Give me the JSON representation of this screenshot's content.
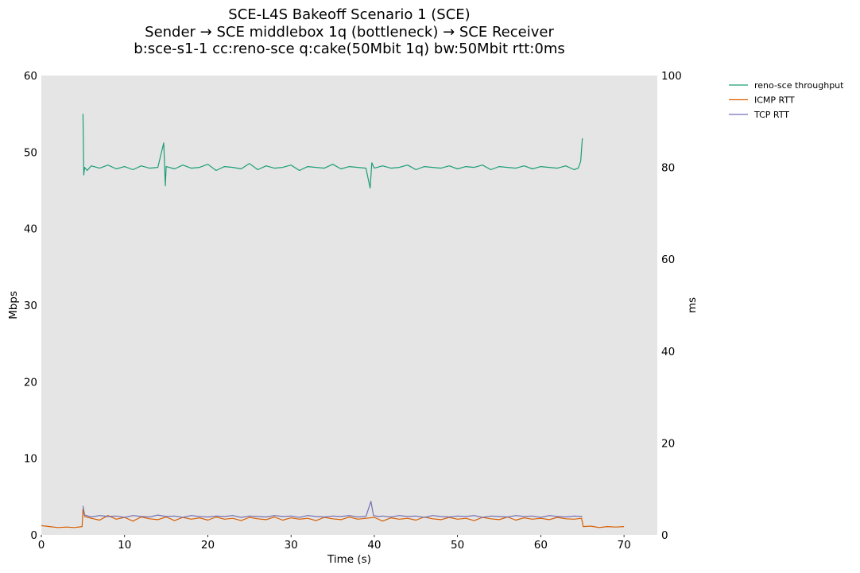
{
  "title": {
    "line1": "SCE-L4S Bakeoff Scenario 1 (SCE)",
    "line2": "Sender → SCE middlebox 1q (bottleneck) → SCE Receiver",
    "line3": "b:sce-s1-1 cc:reno-sce q:cake(50Mbit 1q) bw:50Mbit rtt:0ms"
  },
  "colors": {
    "plot_background": "#e5e5e5",
    "throughput": "#1b9e77",
    "icmp_rtt": "#d95f02",
    "tcp_rtt": "#7570b3"
  },
  "chart_data": {
    "type": "line",
    "title": "SCE-L4S Bakeoff Scenario 1 (SCE)",
    "xlabel": "Time (s)",
    "ylabel_left": "Mbps",
    "ylabel_right": "ms",
    "xlim": [
      0,
      74
    ],
    "ylim_left": [
      0,
      60
    ],
    "ylim_right": [
      0,
      100
    ],
    "xticks": [
      0,
      10,
      20,
      30,
      40,
      50,
      60,
      70
    ],
    "yticks_left": [
      0,
      10,
      20,
      30,
      40,
      50,
      60
    ],
    "yticks_right": [
      0,
      20,
      40,
      60,
      80,
      100
    ],
    "grid": false,
    "legend_position": "outside-top-right",
    "series": [
      {
        "name": "reno-sce throughput",
        "axis": "left",
        "x": [
          5.0,
          5.1,
          5.2,
          5.5,
          6.0,
          7.0,
          8.0,
          9.0,
          10.0,
          11.0,
          12.0,
          13.0,
          14.0,
          14.7,
          14.9,
          15.0,
          16.0,
          17.0,
          18.0,
          19.0,
          20.0,
          21.0,
          22.0,
          23.0,
          24.0,
          25.0,
          26.0,
          27.0,
          28.0,
          29.0,
          30.0,
          31.0,
          32.0,
          33.0,
          34.0,
          35.0,
          36.0,
          37.0,
          38.0,
          39.0,
          39.5,
          39.7,
          40.0,
          41.0,
          42.0,
          43.0,
          44.0,
          45.0,
          46.0,
          47.0,
          48.0,
          49.0,
          50.0,
          51.0,
          52.0,
          53.0,
          54.0,
          55.0,
          56.0,
          57.0,
          58.0,
          59.0,
          60.0,
          61.0,
          62.0,
          63.0,
          64.0,
          64.5,
          64.8,
          65.0
        ],
        "values": [
          55.0,
          47.0,
          48.0,
          47.6,
          48.2,
          47.9,
          48.3,
          47.8,
          48.1,
          47.7,
          48.2,
          47.9,
          48.0,
          51.2,
          45.6,
          48.1,
          47.8,
          48.3,
          47.9,
          48.0,
          48.4,
          47.6,
          48.1,
          48.0,
          47.8,
          48.5,
          47.7,
          48.2,
          47.9,
          48.0,
          48.3,
          47.6,
          48.1,
          48.0,
          47.9,
          48.4,
          47.8,
          48.1,
          48.0,
          47.9,
          45.3,
          48.6,
          47.9,
          48.2,
          47.9,
          48.0,
          48.3,
          47.7,
          48.1,
          48.0,
          47.9,
          48.2,
          47.8,
          48.1,
          48.0,
          48.3,
          47.7,
          48.1,
          48.0,
          47.9,
          48.2,
          47.8,
          48.1,
          48.0,
          47.9,
          48.2,
          47.7,
          47.9,
          48.8,
          51.8
        ]
      },
      {
        "name": "ICMP RTT",
        "axis": "right",
        "x": [
          0.0,
          1.0,
          2.0,
          3.0,
          4.0,
          4.9,
          5.0,
          5.2,
          6.0,
          7.0,
          8.0,
          9.0,
          10.0,
          11.0,
          12.0,
          13.0,
          14.0,
          15.0,
          16.0,
          17.0,
          18.0,
          19.0,
          20.0,
          21.0,
          22.0,
          23.0,
          24.0,
          25.0,
          26.0,
          27.0,
          28.0,
          29.0,
          30.0,
          31.0,
          32.0,
          33.0,
          34.0,
          35.0,
          36.0,
          37.0,
          38.0,
          39.0,
          40.0,
          41.0,
          42.0,
          43.0,
          44.0,
          45.0,
          46.0,
          47.0,
          48.0,
          49.0,
          50.0,
          51.0,
          52.0,
          53.0,
          54.0,
          55.0,
          56.0,
          57.0,
          58.0,
          59.0,
          60.0,
          61.0,
          62.0,
          63.0,
          64.0,
          64.9,
          65.1,
          66.0,
          67.0,
          68.0,
          69.0,
          70.0
        ],
        "values": [
          2.0,
          1.8,
          1.6,
          1.7,
          1.6,
          1.8,
          5.6,
          4.0,
          3.6,
          3.2,
          4.2,
          3.4,
          3.8,
          3.0,
          3.9,
          3.5,
          3.3,
          3.9,
          3.1,
          3.8,
          3.4,
          3.7,
          3.2,
          3.9,
          3.4,
          3.6,
          3.1,
          3.8,
          3.5,
          3.3,
          3.9,
          3.2,
          3.7,
          3.4,
          3.6,
          3.1,
          3.8,
          3.5,
          3.3,
          3.9,
          3.4,
          3.6,
          3.8,
          3.0,
          3.7,
          3.4,
          3.6,
          3.2,
          3.9,
          3.5,
          3.3,
          3.8,
          3.4,
          3.6,
          3.1,
          3.8,
          3.5,
          3.3,
          3.9,
          3.2,
          3.7,
          3.4,
          3.6,
          3.3,
          3.8,
          3.5,
          3.4,
          3.6,
          1.8,
          1.9,
          1.6,
          1.8,
          1.7,
          1.8
        ]
      },
      {
        "name": "TCP RTT",
        "axis": "right",
        "x": [
          5.0,
          5.2,
          6.0,
          7.0,
          8.0,
          9.0,
          10.0,
          11.0,
          12.0,
          13.0,
          14.0,
          15.0,
          16.0,
          17.0,
          18.0,
          19.0,
          20.0,
          21.0,
          22.0,
          23.0,
          24.0,
          25.0,
          26.0,
          27.0,
          28.0,
          29.0,
          30.0,
          31.0,
          32.0,
          33.0,
          34.0,
          35.0,
          36.0,
          37.0,
          38.0,
          39.0,
          39.6,
          39.9,
          40.5,
          41.0,
          42.0,
          43.0,
          44.0,
          45.0,
          46.0,
          47.0,
          48.0,
          49.0,
          50.0,
          51.0,
          52.0,
          53.0,
          54.0,
          55.0,
          56.0,
          57.0,
          58.0,
          59.0,
          60.0,
          61.0,
          62.0,
          63.0,
          64.0,
          65.0
        ],
        "values": [
          6.3,
          4.3,
          3.9,
          4.2,
          4.0,
          4.1,
          3.8,
          4.2,
          4.0,
          3.9,
          4.3,
          4.0,
          4.1,
          3.8,
          4.2,
          4.0,
          3.9,
          4.1,
          4.0,
          4.2,
          3.8,
          4.1,
          4.0,
          3.9,
          4.2,
          4.0,
          4.1,
          3.8,
          4.2,
          4.0,
          3.9,
          4.1,
          4.0,
          4.2,
          3.9,
          4.0,
          7.3,
          4.2,
          4.0,
          4.1,
          3.9,
          4.2,
          4.0,
          4.1,
          3.8,
          4.2,
          4.0,
          3.9,
          4.1,
          4.0,
          4.2,
          3.8,
          4.1,
          4.0,
          3.9,
          4.2,
          4.0,
          4.1,
          3.8,
          4.2,
          4.0,
          3.9,
          4.1,
          4.0
        ]
      }
    ]
  }
}
